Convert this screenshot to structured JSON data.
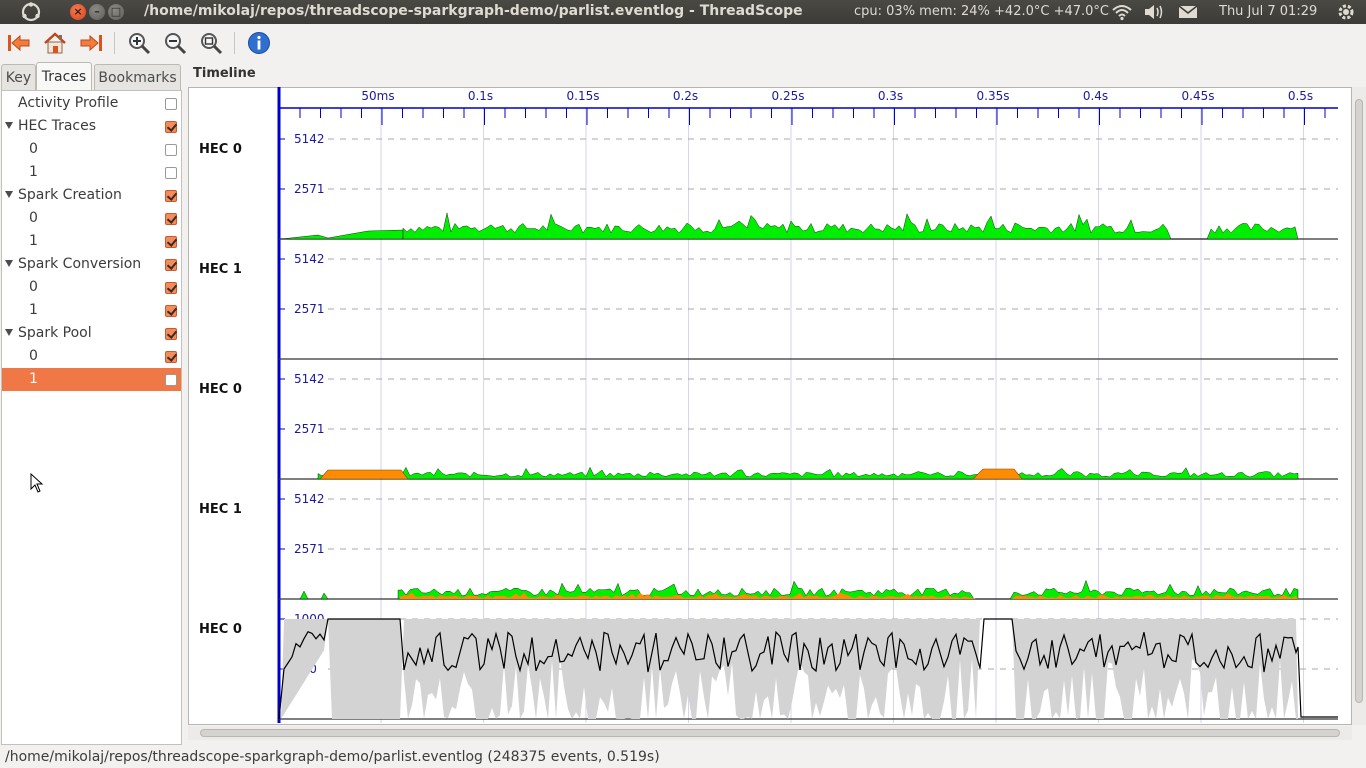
{
  "topbar": {
    "window_title": "/home/mikolaj/repos/threadscope-sparkgraph-demo/parlist.eventlog - ThreadScope",
    "sysmon": "cpu: 03% mem: 24% +42.0°C +47.0°C",
    "clock": "Thu Jul  7 01:29",
    "icons": [
      "ubuntu-logo-icon",
      "close-icon",
      "minimize-icon",
      "maximize-icon",
      "wifi-icon",
      "volume-icon",
      "mail-icon",
      "gear-icon"
    ]
  },
  "toolbar": {
    "buttons": [
      "jump-to-start",
      "home",
      "jump-to-end",
      "zoom-in",
      "zoom-out",
      "zoom-fit",
      "info"
    ]
  },
  "sidebar": {
    "tabs": [
      "Key",
      "Traces",
      "Bookmarks"
    ],
    "active_tab": "Traces",
    "items": [
      {
        "label": "Activity Profile",
        "checked": false
      },
      {
        "label": "HEC Traces",
        "checked": true,
        "expander": true
      },
      {
        "label": "0",
        "checked": false
      },
      {
        "label": "1",
        "checked": false
      },
      {
        "label": "Spark Creation",
        "checked": true,
        "expander": true
      },
      {
        "label": "0",
        "checked": true
      },
      {
        "label": "1",
        "checked": true
      },
      {
        "label": "Spark Conversion",
        "checked": true,
        "expander": true
      },
      {
        "label": "0",
        "checked": true
      },
      {
        "label": "1",
        "checked": true
      },
      {
        "label": "Spark Pool",
        "checked": true,
        "expander": true
      },
      {
        "label": "0",
        "checked": true
      },
      {
        "label": "1",
        "checked": false,
        "selected": true
      }
    ]
  },
  "timeline": {
    "title": "Timeline",
    "ticks": [
      "50ms",
      "0.1s",
      "0.15s",
      "0.2s",
      "0.25s",
      "0.3s",
      "0.35s",
      "0.4s",
      "0.45s",
      "0.5s"
    ],
    "rows": [
      {
        "label": "HEC 0",
        "y_labels": [
          "5142",
          "2571"
        ]
      },
      {
        "label": "HEC 1",
        "y_labels": [
          "5142",
          "2571"
        ]
      },
      {
        "label": "HEC 0",
        "y_labels": [
          "5142",
          "2571"
        ]
      },
      {
        "label": "HEC 1",
        "y_labels": [
          "5142",
          "2571"
        ]
      },
      {
        "label": "HEC 0",
        "y_labels": [
          "1000",
          "500"
        ]
      }
    ],
    "colors": {
      "creation": "#00ee00",
      "overflow": "#ff8c00",
      "pool_fill": "#d3d3d3",
      "pool_line": "#000000",
      "axis": "#0000cc"
    }
  },
  "status": {
    "text": "/home/mikolaj/repos/threadscope-sparkgraph-demo/parlist.eventlog (248375 events, 0.519s)"
  }
}
